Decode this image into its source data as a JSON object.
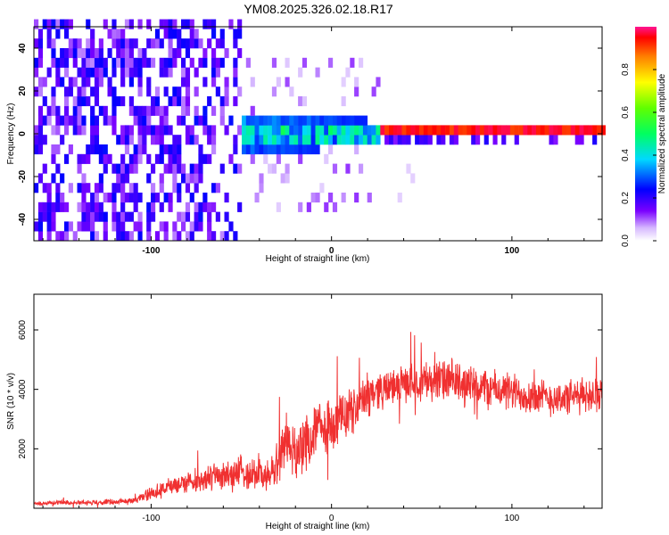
{
  "title": "YM08.2025.326.02.18.R17",
  "colors": {
    "snr_line": "#f03030",
    "frame": "#000000"
  },
  "chart_data": [
    {
      "type": "heatmap",
      "xlabel": "Height of straight line (km)",
      "ylabel": "Frequency (Hz)",
      "xlim": [
        -165,
        150
      ],
      "ylim": [
        -50,
        50
      ],
      "xticks": [
        -100,
        0,
        100
      ],
      "yticks": [
        -40,
        -20,
        0,
        20,
        40
      ],
      "description_of_data": [
        {
          "region": "x<-52",
          "behaviour": "sparse scattered low amplitude noise at all frequencies"
        },
        {
          "region": "-65<x<25",
          "behaviour": "broadband energy concentrated near 0 Hz, width ~ +/-8 Hz, amplitude 0.2-0.55"
        },
        {
          "region": "x>25",
          "behaviour": "narrow line at 0 Hz with amplitude ~0.9-1.0"
        }
      ],
      "colorbar": {
        "label": "Normalized spectral amplitude",
        "range": [
          0,
          1
        ],
        "ticks": [
          0.0,
          0.2,
          0.4,
          0.6,
          0.8
        ],
        "tick_labels": [
          "0.0",
          "0.2",
          "0.4",
          "0.6",
          "0.8"
        ]
      }
    },
    {
      "type": "line",
      "xlabel": "Height of straight line (km)",
      "ylabel": "SNR (10 * v/v)",
      "xlim": [
        -165,
        150
      ],
      "ylim": [
        0,
        7200
      ],
      "xticks": [
        -100,
        0,
        100
      ],
      "yticks": [
        2000,
        4000,
        6000
      ],
      "series": [
        {
          "x": [
            -165,
            -150,
            -130,
            -110,
            -100,
            -90,
            -80,
            -70,
            -60,
            -50,
            -40,
            -35,
            -30,
            -25,
            -20,
            -15,
            -10,
            -5,
            0,
            5,
            10,
            15,
            20,
            25,
            30,
            40,
            50,
            60,
            70,
            80,
            90,
            100,
            110,
            120,
            130,
            140,
            150
          ],
          "y": [
            150,
            200,
            200,
            250,
            500,
            700,
            900,
            1000,
            1100,
            1200,
            1200,
            1000,
            1500,
            2300,
            1800,
            2200,
            2500,
            2800,
            2800,
            3000,
            3200,
            3500,
            3800,
            4000,
            4000,
            4200,
            4300,
            4300,
            4200,
            4100,
            4000,
            3900,
            3800,
            3700,
            3700,
            3800,
            3900
          ],
          "band": [
            120,
            120,
            150,
            150,
            400,
            500,
            600,
            700,
            900,
            1000,
            1000,
            900,
            1300,
            1500,
            1400,
            1500,
            1500,
            1500,
            1500,
            1400,
            1300,
            1200,
            1200,
            1100,
            1000,
            1000,
            1100,
            1200,
            1300,
            1200,
            1100,
            1100,
            1100,
            1000,
            1000,
            1000,
            1000
          ]
        }
      ]
    }
  ]
}
